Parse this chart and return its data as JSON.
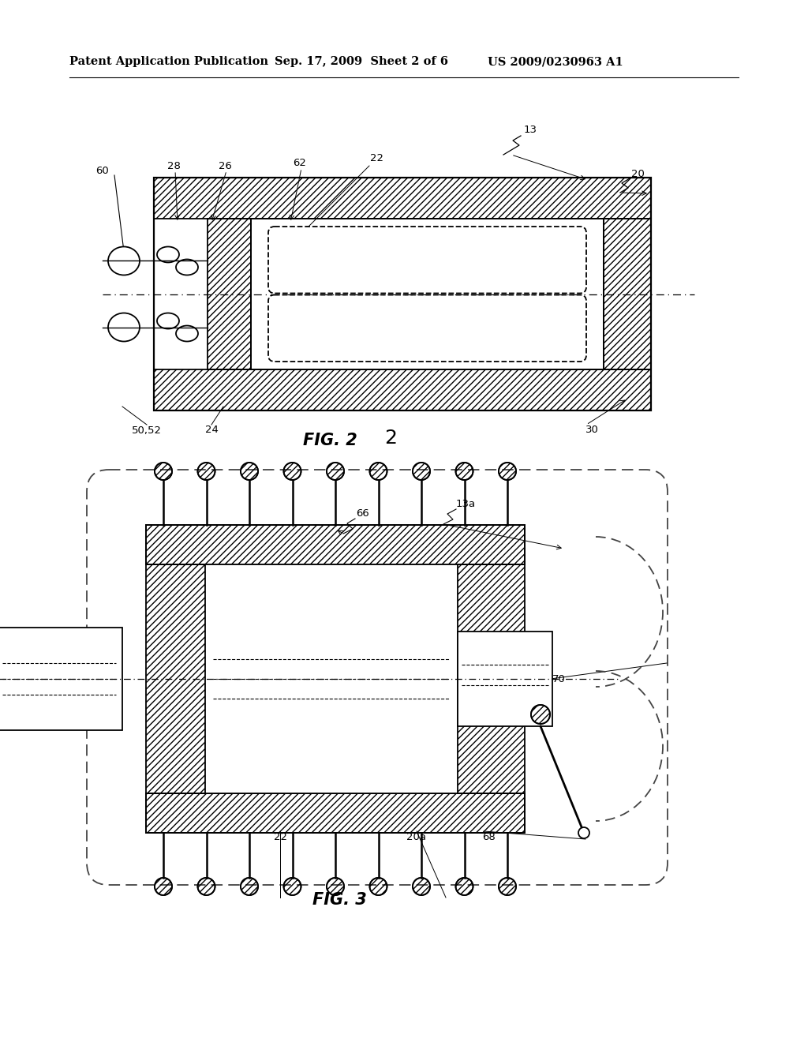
{
  "bg_color": "#ffffff",
  "header_text": "Patent Application Publication",
  "header_date": "Sep. 17, 2009  Sheet 2 of 6",
  "header_patent": "US 2009/0230963 A1",
  "fig2_label": "FIG. 2",
  "fig2_num": "2",
  "fig3_label": "FIG. 3",
  "line_color": "#000000"
}
